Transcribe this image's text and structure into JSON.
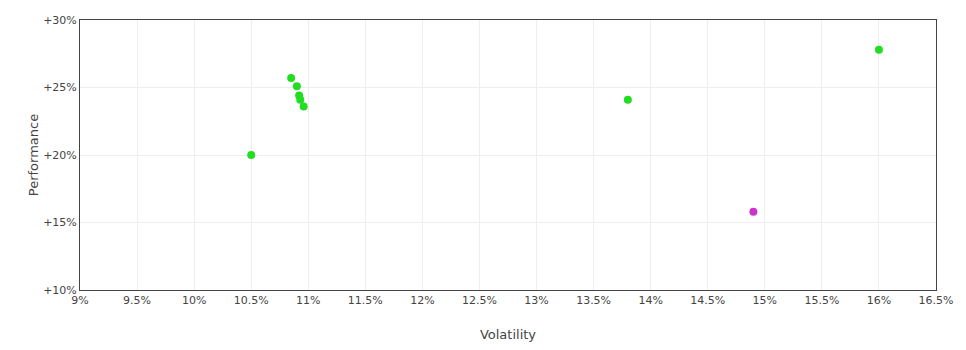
{
  "chart_data": {
    "type": "scatter",
    "xlabel": "Volatility",
    "ylabel": "Performance",
    "xlim": [
      0.09,
      0.165
    ],
    "ylim": [
      0.1,
      0.3
    ],
    "xticks": [
      {
        "value": 0.09,
        "label": "9%"
      },
      {
        "value": 0.095,
        "label": "9.5%"
      },
      {
        "value": 0.1,
        "label": "10%"
      },
      {
        "value": 0.105,
        "label": "10.5%"
      },
      {
        "value": 0.11,
        "label": "11%"
      },
      {
        "value": 0.115,
        "label": "11.5%"
      },
      {
        "value": 0.12,
        "label": "12%"
      },
      {
        "value": 0.125,
        "label": "12.5%"
      },
      {
        "value": 0.13,
        "label": "13%"
      },
      {
        "value": 0.135,
        "label": "13.5%"
      },
      {
        "value": 0.14,
        "label": "14%"
      },
      {
        "value": 0.145,
        "label": "14.5%"
      },
      {
        "value": 0.15,
        "label": "15%"
      },
      {
        "value": 0.155,
        "label": "15.5%"
      },
      {
        "value": 0.16,
        "label": "16%"
      },
      {
        "value": 0.165,
        "label": "16.5%"
      }
    ],
    "yticks": [
      {
        "value": 0.1,
        "label": "+10%"
      },
      {
        "value": 0.15,
        "label": "+15%"
      },
      {
        "value": 0.2,
        "label": "+20%"
      },
      {
        "value": 0.25,
        "label": "+25%"
      },
      {
        "value": 0.3,
        "label": "+30%"
      }
    ],
    "grid": true,
    "series": [
      {
        "color": "#22dd22",
        "x": [
          0.105,
          0.1085,
          0.109,
          0.1092,
          0.1093,
          0.1096,
          0.138,
          0.16
        ],
        "values": [
          0.2,
          0.257,
          0.251,
          0.244,
          0.241,
          0.236,
          0.241,
          0.278
        ]
      },
      {
        "color": "#cc33cc",
        "x": [
          0.149
        ],
        "values": [
          0.158
        ]
      }
    ]
  }
}
